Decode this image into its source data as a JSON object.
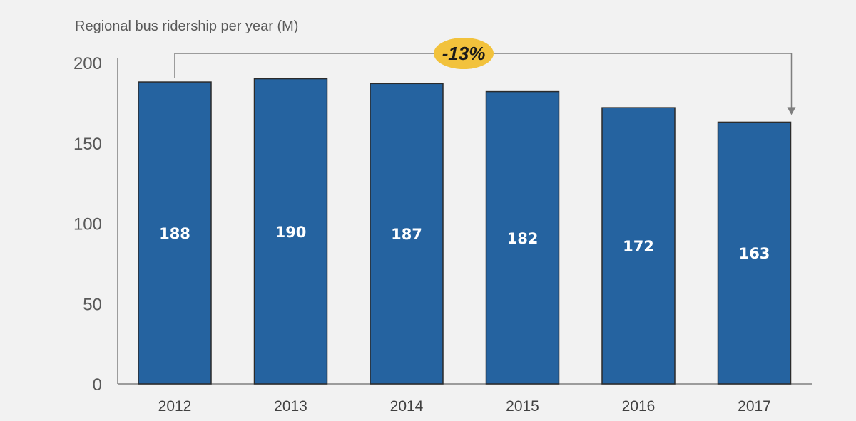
{
  "chart_data": {
    "type": "bar",
    "title": "Regional bus ridership per year (M)",
    "categories": [
      "2012",
      "2013",
      "2014",
      "2015",
      "2016",
      "2017"
    ],
    "values": [
      188,
      190,
      187,
      182,
      172,
      163
    ],
    "data_labels": [
      "188",
      "190",
      "187",
      "182",
      "172",
      "163"
    ],
    "ylim": [
      0,
      200
    ],
    "yticks": [
      "0",
      "50",
      "100",
      "150",
      "200"
    ],
    "xlabel": "",
    "ylabel": "",
    "grid": false,
    "legend": "none",
    "annotations": [
      {
        "text": "-13%",
        "from_category": "2012",
        "to_category": "2017"
      }
    ],
    "colors": {
      "bar": "#2563a0",
      "callout_badge": "#f2c23c",
      "background": "#f2f2f2",
      "axis": "#7f7f7f"
    }
  }
}
